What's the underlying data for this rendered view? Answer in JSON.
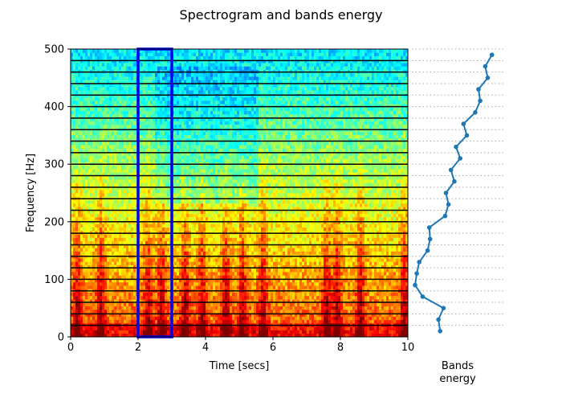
{
  "figure": {
    "title": "Spectrogram and bands energy"
  },
  "chart_data": [
    {
      "type": "heatmap",
      "title": "Spectrogram and bands energy",
      "xlabel": "Time [secs]",
      "ylabel": "Frequency [Hz]",
      "xlim": [
        0,
        10
      ],
      "ylim": [
        0,
        500
      ],
      "xticks": [
        "0",
        "2",
        "4",
        "6",
        "8",
        "10"
      ],
      "yticks": [
        "0",
        "100",
        "200",
        "300",
        "400",
        "500"
      ],
      "colormap": "jet",
      "band_edges_hz": [
        20,
        40,
        60,
        80,
        100,
        120,
        140,
        160,
        180,
        200,
        220,
        240,
        260,
        280,
        300,
        320,
        340,
        360,
        380,
        400,
        420,
        440,
        460,
        480
      ],
      "highlight": {
        "t0": 2,
        "t1": 3,
        "f0": 0,
        "f1": 500,
        "color": "#0000ee"
      },
      "high_energy_times_secs": [
        0.2,
        0.9,
        2.3,
        2.7,
        3.4,
        3.9,
        4.6,
        5.1,
        5.7,
        7.6,
        7.9,
        8.6,
        9.9
      ],
      "colors": {
        "band_lines": "#000000",
        "highlight_box": "#0000ee"
      }
    },
    {
      "type": "line",
      "xlabel": "Bands\nenergy",
      "x_scale": "relative",
      "band_center_freqs_hz": [
        10,
        30,
        50,
        70,
        90,
        110,
        130,
        150,
        170,
        190,
        210,
        230,
        250,
        270,
        290,
        310,
        330,
        350,
        370,
        390,
        410,
        430,
        450,
        470,
        490
      ],
      "values": [
        0.3,
        0.28,
        0.34,
        0.09,
        0.0,
        0.02,
        0.05,
        0.15,
        0.18,
        0.17,
        0.36,
        0.4,
        0.37,
        0.47,
        0.43,
        0.54,
        0.49,
        0.62,
        0.58,
        0.72,
        0.78,
        0.76,
        0.87,
        0.84,
        0.92
      ],
      "grid": "dotted horizontal at band edges",
      "colors": {
        "line": "#1f77b4",
        "grid": "#aaaaaa"
      }
    }
  ]
}
